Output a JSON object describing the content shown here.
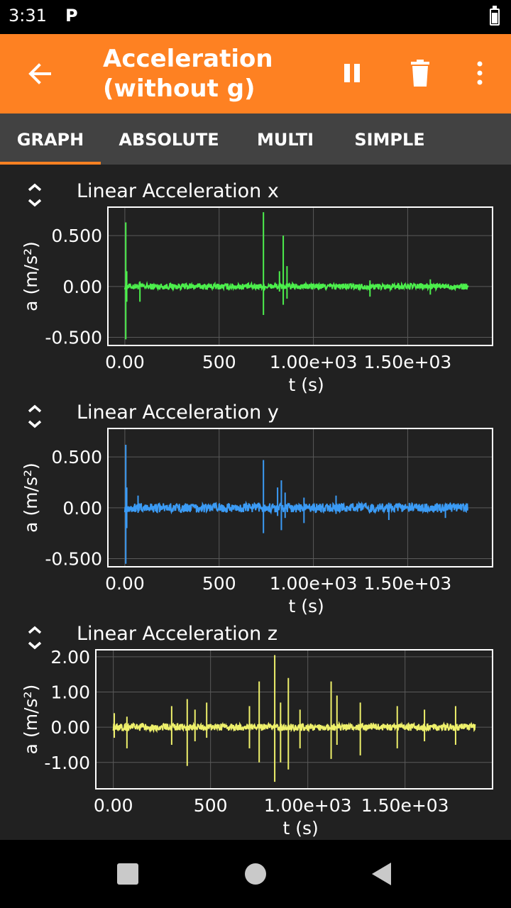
{
  "status": {
    "time": "3:31",
    "app_icon_letter": "P"
  },
  "appbar": {
    "title_line1": "Acceleration",
    "title_line2": "(without g)",
    "back_icon": "arrow-left-icon",
    "pause_icon": "pause-icon",
    "delete_icon": "trash-icon",
    "menu_icon": "more-vertical-icon",
    "color": "#FE8122"
  },
  "tabs": [
    {
      "label": "GRAPH",
      "active": true
    },
    {
      "label": "ABSOLUTE",
      "active": false
    },
    {
      "label": "MULTI",
      "active": false
    },
    {
      "label": "SIMPLE",
      "active": false
    }
  ],
  "chart_data": [
    {
      "type": "line",
      "title": "Linear Acceleration x",
      "xlabel": "t (s)",
      "ylabel": "a (m/s²)",
      "xlim": [
        -90,
        1950
      ],
      "ylim": [
        -0.58,
        0.78
      ],
      "x_ticks": [
        "0.00",
        "500",
        "1.00e+03",
        "1.50e+03"
      ],
      "y_ticks": [
        "0.500",
        "0.00",
        "-0.500"
      ],
      "x_tick_values": [
        0,
        500,
        1000,
        1500
      ],
      "y_tick_values": [
        0.5,
        0,
        -0.5
      ],
      "color": "#4CEF4C",
      "noise": 0.03,
      "x_range": [
        0,
        1820
      ],
      "spikes": [
        [
          5,
          0.63,
          -0.52
        ],
        [
          10,
          0.15,
          -0.15
        ],
        [
          80,
          0.05,
          -0.15
        ],
        [
          735,
          0.73,
          -0.28
        ],
        [
          820,
          0.15,
          -0.05
        ],
        [
          840,
          0.5,
          -0.18
        ],
        [
          860,
          0.2,
          -0.12
        ],
        [
          1300,
          0.06,
          -0.1
        ],
        [
          1620,
          0.07,
          -0.08
        ]
      ],
      "grid": true
    },
    {
      "type": "line",
      "title": "Linear Acceleration y",
      "xlabel": "t (s)",
      "ylabel": "a (m/s²)",
      "xlim": [
        -90,
        1950
      ],
      "ylim": [
        -0.58,
        0.78
      ],
      "x_ticks": [
        "0.00",
        "500",
        "1.00e+03",
        "1.50e+03"
      ],
      "y_ticks": [
        "0.500",
        "0.00",
        "-0.500"
      ],
      "x_tick_values": [
        0,
        500,
        1000,
        1500
      ],
      "y_tick_values": [
        0.5,
        0,
        -0.5
      ],
      "color": "#3B9BF5",
      "noise": 0.045,
      "x_range": [
        0,
        1820
      ],
      "spikes": [
        [
          5,
          0.62,
          -0.55
        ],
        [
          10,
          0.2,
          -0.2
        ],
        [
          70,
          0.12,
          -0.05
        ],
        [
          735,
          0.47,
          -0.25
        ],
        [
          810,
          0.2,
          -0.08
        ],
        [
          830,
          0.27,
          -0.22
        ],
        [
          850,
          0.15,
          -0.1
        ],
        [
          950,
          0.1,
          -0.15
        ],
        [
          1120,
          0.12,
          -0.06
        ],
        [
          1400,
          0.05,
          -0.12
        ],
        [
          1700,
          0.04,
          -0.1
        ]
      ],
      "grid": true
    },
    {
      "type": "line",
      "title": "Linear Acceleration z",
      "xlabel": "t (s)",
      "ylabel": "a (m/s²)",
      "xlim": [
        -90,
        1950
      ],
      "ylim": [
        -1.75,
        2.2
      ],
      "x_ticks": [
        "0.00",
        "500",
        "1.00e+03",
        "1.50e+03"
      ],
      "y_ticks": [
        "2.00",
        "1.00",
        "0.00",
        "-1.00"
      ],
      "x_tick_values": [
        0,
        500,
        1000,
        1500
      ],
      "y_tick_values": [
        2,
        1,
        0,
        -1
      ],
      "color": "#EEF06B",
      "noise": 0.1,
      "x_range": [
        0,
        1860
      ],
      "spikes": [
        [
          5,
          0.4,
          -0.3
        ],
        [
          70,
          0.3,
          -0.6
        ],
        [
          300,
          0.6,
          -0.5
        ],
        [
          380,
          0.8,
          -1.1
        ],
        [
          420,
          0.5,
          -0.4
        ],
        [
          480,
          0.7,
          -0.3
        ],
        [
          700,
          0.6,
          -0.6
        ],
        [
          750,
          1.3,
          -1.0
        ],
        [
          830,
          2.05,
          -1.55
        ],
        [
          860,
          0.7,
          -1.0
        ],
        [
          900,
          1.4,
          -1.2
        ],
        [
          960,
          0.5,
          -0.6
        ],
        [
          1120,
          1.3,
          -0.9
        ],
        [
          1150,
          0.9,
          -0.5
        ],
        [
          1270,
          0.7,
          -0.8
        ],
        [
          1460,
          0.6,
          -0.6
        ],
        [
          1600,
          0.5,
          -0.4
        ],
        [
          1760,
          0.6,
          -0.5
        ]
      ],
      "grid": true
    }
  ],
  "navbar": {
    "square_icon": "recents-square-icon",
    "circle_icon": "home-circle-icon",
    "triangle_icon": "back-triangle-icon"
  }
}
